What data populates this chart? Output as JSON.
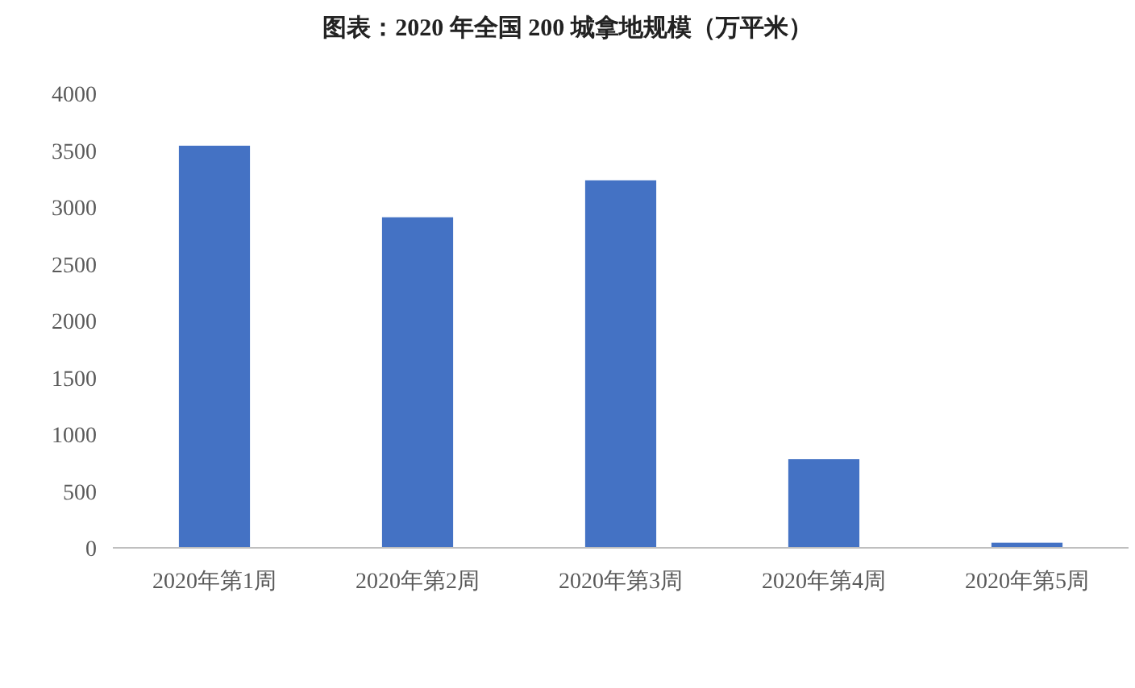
{
  "chart_data": {
    "type": "bar",
    "title": "图表：2020 年全国 200 城拿地规模（万平米）",
    "categories": [
      "2020年第1周",
      "2020年第2周",
      "2020年第3周",
      "2020年第4周",
      "2020年第5周"
    ],
    "values": [
      3540,
      2910,
      3235,
      780,
      45
    ],
    "color": "#4472c4",
    "ylim": [
      0,
      4000
    ],
    "yticks": [
      0,
      500,
      1000,
      1500,
      2000,
      2500,
      3000,
      3500,
      4000
    ],
    "grid": false,
    "legend": false
  }
}
